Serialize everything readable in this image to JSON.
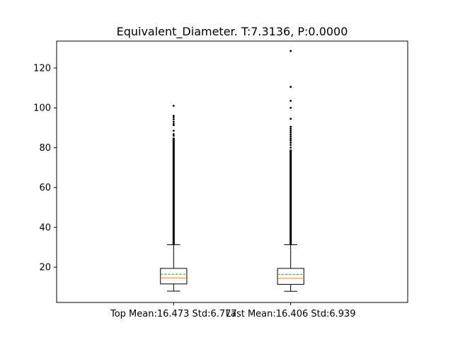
{
  "chart_data": {
    "type": "box",
    "title": "Equivalent_Diameter. T:7.3136, P:0.0000",
    "xlabel": "",
    "ylabel": "",
    "ylim": [
      2.3,
      133.5
    ],
    "yticks": [
      20,
      40,
      60,
      80,
      100,
      120
    ],
    "grid": false,
    "legend": "none",
    "colors": {
      "median": "#ff7f0e",
      "mean": "#2ca02c",
      "box": "#000000",
      "flier": "#000000"
    },
    "categories": [
      "Top Mean:16.473 Std:6.777",
      "Last Mean:16.406 Std:6.939"
    ],
    "boxes": [
      {
        "whisker_low": 8.0,
        "q1": 11.6,
        "median": 14.6,
        "mean": 16.473,
        "q3": 19.4,
        "whisker_high": 31.3,
        "outlier_range": [
          31.3,
          85.0
        ],
        "outliers": [
          86.0,
          86.8,
          88.5,
          91.3,
          92.0,
          93.0,
          94.2,
          95.3,
          96.0,
          101.0
        ]
      },
      {
        "whisker_low": 7.9,
        "q1": 11.4,
        "median": 14.4,
        "mean": 16.406,
        "q3": 19.4,
        "whisker_high": 31.3,
        "outlier_range": [
          31.3,
          79.0
        ],
        "outliers": [
          80.0,
          81.3,
          82.5,
          83.6,
          84.5,
          85.5,
          86.5,
          87.5,
          88.5,
          89.5,
          90.5,
          94.5,
          100.0,
          103.5,
          110.5,
          128.5
        ]
      }
    ]
  }
}
